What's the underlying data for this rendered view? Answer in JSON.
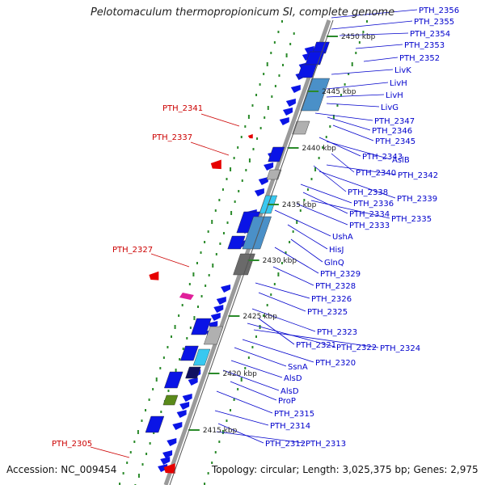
{
  "title": "Pelotomaculum thermopropionicum SI, complete genome",
  "footer": {
    "accession": "Accession: NC_009454",
    "topology": "Topology: circular; Length: 3,025,375 bp; Genes: 2,975"
  },
  "colors": {
    "label_blue": "#0000cc",
    "label_red": "#cc0000",
    "backbone": "#9a9a9a",
    "gene_blue": "#0a14e6",
    "gene_red": "#e60000",
    "rna_lightblue": "#4a90c8",
    "cyan": "#38c8f0",
    "magenta": "#e0209a",
    "olive": "#5a8a1a",
    "navy": "#101060",
    "gray": "#b0b0b0",
    "dark_gray": "#6a6a6a",
    "dot_green": "#2a8a2a"
  },
  "ticks": [
    "2450 kbp",
    "2445 kbp",
    "2440 kbp",
    "2435 kbp",
    "2430 kbp",
    "2425 kbp",
    "2420 kbp",
    "2415 kbp"
  ],
  "blue_labels": [
    "PTH_2356",
    "PTH_2355",
    "PTH_2354",
    "PTH_2353",
    "PTH_2352",
    "LivK",
    "LivH",
    "LivH",
    "LivG",
    "PTH_2347",
    "PTH_2346",
    "PTH_2345",
    "PTH_2343",
    "AslB",
    "PTH_2340",
    "PTH_2342",
    "PTH_2338",
    "PTH_2339",
    "PTH_2336",
    "PTH_2334",
    "PTH_2335",
    "PTH_2333",
    "UshA",
    "HisJ",
    "GlnQ",
    "PTH_2329",
    "PTH_2328",
    "PTH_2326",
    "PTH_2325",
    "PTH_2323",
    "PTH_2321",
    "PTH_2322",
    "PTH_2324",
    "PTH_2320",
    "SsnA",
    "AlsD",
    "AlsD",
    "ProP",
    "PTH_2315",
    "PTH_2314",
    "PTH_2312",
    "PTH_2313"
  ],
  "red_labels": [
    "PTH_2341",
    "PTH_2337",
    "PTH_2327",
    "PTH_2305"
  ]
}
